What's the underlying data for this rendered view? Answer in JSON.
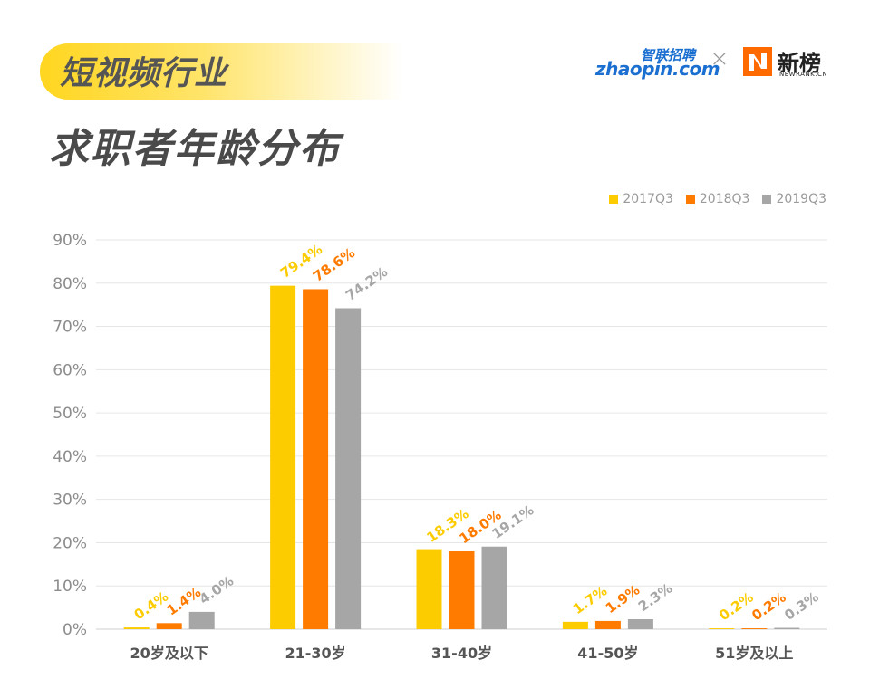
{
  "header": {
    "tag": "短视频行业",
    "title": "求职者年龄分布"
  },
  "logos": {
    "zhaopin_cn": "智联招聘",
    "zhaopin_en": "zhaopin.com",
    "separator": "×",
    "newrank_cn": "新榜",
    "newrank_en": "NEWRANK.CN"
  },
  "chart_data": {
    "type": "bar",
    "categories": [
      "20岁及以下",
      "21-30岁",
      "31-40岁",
      "41-50岁",
      "51岁及以上"
    ],
    "series": [
      {
        "name": "2017Q3",
        "color": "#fccc00",
        "values": [
          0.4,
          79.4,
          18.3,
          1.7,
          0.2
        ],
        "labels": [
          "0.4%",
          "79.4%",
          "18.3%",
          "1.7%",
          "0.2%"
        ]
      },
      {
        "name": "2018Q3",
        "color": "#ff7b00",
        "values": [
          1.4,
          78.6,
          18.0,
          1.9,
          0.2
        ],
        "labels": [
          "1.4%",
          "78.6%",
          "18.0%",
          "1.9%",
          "0.2%"
        ]
      },
      {
        "name": "2019Q3",
        "color": "#a6a6a6",
        "values": [
          4.0,
          74.2,
          19.1,
          2.3,
          0.3
        ],
        "labels": [
          "4.0%",
          "74.2%",
          "19.1%",
          "2.3%",
          "0.3%"
        ]
      }
    ],
    "yticks": [
      "0%",
      "10%",
      "20%",
      "30%",
      "40%",
      "50%",
      "60%",
      "70%",
      "80%",
      "90%"
    ],
    "ylim": [
      0,
      90
    ],
    "legend_position": "top-right",
    "grid": true
  }
}
